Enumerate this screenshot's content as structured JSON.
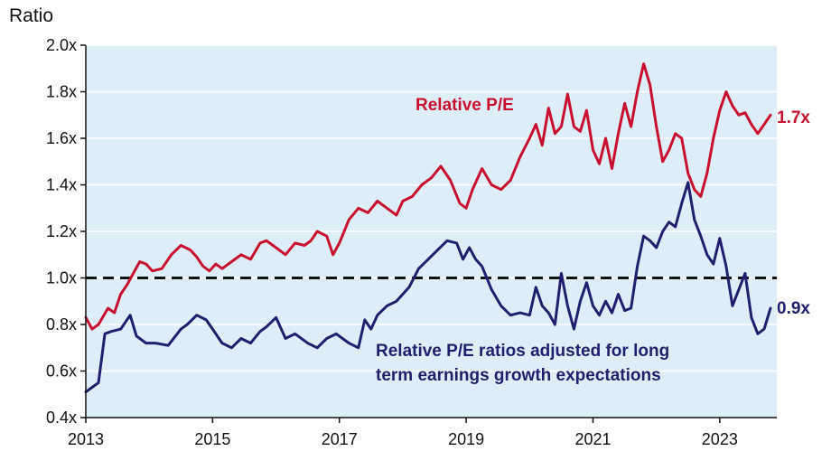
{
  "chart_data": {
    "type": "line",
    "ylabel": "Ratio",
    "xlim": [
      2013,
      2023.9
    ],
    "ylim": [
      0.4,
      2.0
    ],
    "yticks": [
      {
        "value": 2.0,
        "label": "2.0x"
      },
      {
        "value": 1.8,
        "label": "1.8x"
      },
      {
        "value": 1.6,
        "label": "1.6x"
      },
      {
        "value": 1.4,
        "label": "1.4x"
      },
      {
        "value": 1.2,
        "label": "1.2x"
      },
      {
        "value": 1.0,
        "label": "1.0x"
      },
      {
        "value": 0.8,
        "label": "0.8x"
      },
      {
        "value": 0.6,
        "label": "0.6x"
      },
      {
        "value": 0.4,
        "label": "0.4x"
      }
    ],
    "xticks": [
      {
        "value": 2013,
        "label": "2013"
      },
      {
        "value": 2015,
        "label": "2015"
      },
      {
        "value": 2017,
        "label": "2017"
      },
      {
        "value": 2019,
        "label": "2019"
      },
      {
        "value": 2021,
        "label": "2021"
      },
      {
        "value": 2023,
        "label": "2023"
      }
    ],
    "reference_line": {
      "value": 1.0,
      "style": "dashed"
    },
    "series": [
      {
        "name": "Relative P/E",
        "color": "#c8102e",
        "end_label": "1.7x",
        "x": [
          2013.0,
          2013.1,
          2013.2,
          2013.35,
          2013.45,
          2013.55,
          2013.65,
          2013.75,
          2013.85,
          2013.95,
          2014.05,
          2014.2,
          2014.35,
          2014.5,
          2014.65,
          2014.75,
          2014.85,
          2014.95,
          2015.05,
          2015.15,
          2015.3,
          2015.45,
          2015.6,
          2015.75,
          2015.85,
          2016.0,
          2016.15,
          2016.3,
          2016.45,
          2016.55,
          2016.65,
          2016.8,
          2016.9,
          2017.0,
          2017.15,
          2017.3,
          2017.45,
          2017.6,
          2017.75,
          2017.9,
          2018.0,
          2018.15,
          2018.3,
          2018.45,
          2018.6,
          2018.75,
          2018.9,
          2019.0,
          2019.1,
          2019.25,
          2019.4,
          2019.55,
          2019.7,
          2019.85,
          2020.0,
          2020.1,
          2020.2,
          2020.3,
          2020.4,
          2020.5,
          2020.6,
          2020.7,
          2020.8,
          2020.9,
          2021.0,
          2021.1,
          2021.2,
          2021.3,
          2021.4,
          2021.5,
          2021.6,
          2021.7,
          2021.8,
          2021.9,
          2022.0,
          2022.1,
          2022.2,
          2022.3,
          2022.4,
          2022.5,
          2022.6,
          2022.7,
          2022.8,
          2022.9,
          2023.0,
          2023.1,
          2023.2,
          2023.3,
          2023.4,
          2023.5,
          2023.6,
          2023.7,
          2023.8
        ],
        "values": [
          0.83,
          0.78,
          0.8,
          0.87,
          0.85,
          0.93,
          0.97,
          1.02,
          1.07,
          1.06,
          1.03,
          1.04,
          1.1,
          1.14,
          1.12,
          1.09,
          1.05,
          1.03,
          1.06,
          1.04,
          1.07,
          1.1,
          1.08,
          1.15,
          1.16,
          1.13,
          1.1,
          1.15,
          1.14,
          1.16,
          1.2,
          1.18,
          1.1,
          1.15,
          1.25,
          1.3,
          1.28,
          1.33,
          1.3,
          1.27,
          1.33,
          1.35,
          1.4,
          1.43,
          1.48,
          1.42,
          1.32,
          1.3,
          1.38,
          1.47,
          1.4,
          1.38,
          1.42,
          1.52,
          1.6,
          1.66,
          1.57,
          1.73,
          1.62,
          1.65,
          1.79,
          1.65,
          1.63,
          1.72,
          1.55,
          1.49,
          1.6,
          1.47,
          1.62,
          1.75,
          1.65,
          1.8,
          1.92,
          1.83,
          1.65,
          1.5,
          1.55,
          1.62,
          1.6,
          1.45,
          1.38,
          1.35,
          1.45,
          1.6,
          1.72,
          1.8,
          1.74,
          1.7,
          1.71,
          1.66,
          1.62,
          1.66,
          1.7
        ]
      },
      {
        "name": "Relative P/E ratios adjusted for long term earnings growth expectations",
        "color": "#1f1f6e",
        "end_label": "0.9x",
        "x": [
          2013.0,
          2013.1,
          2013.2,
          2013.3,
          2013.4,
          2013.55,
          2013.7,
          2013.8,
          2013.95,
          2014.1,
          2014.3,
          2014.5,
          2014.6,
          2014.75,
          2014.9,
          2015.0,
          2015.15,
          2015.3,
          2015.45,
          2015.6,
          2015.75,
          2015.85,
          2016.0,
          2016.15,
          2016.3,
          2016.5,
          2016.65,
          2016.8,
          2016.95,
          2017.0,
          2017.15,
          2017.3,
          2017.4,
          2017.5,
          2017.6,
          2017.75,
          2017.9,
          2018.1,
          2018.25,
          2018.4,
          2018.55,
          2018.7,
          2018.85,
          2018.95,
          2019.05,
          2019.15,
          2019.25,
          2019.4,
          2019.55,
          2019.7,
          2019.85,
          2020.0,
          2020.1,
          2020.2,
          2020.3,
          2020.4,
          2020.5,
          2020.6,
          2020.7,
          2020.8,
          2020.9,
          2021.0,
          2021.1,
          2021.2,
          2021.3,
          2021.4,
          2021.5,
          2021.6,
          2021.7,
          2021.8,
          2021.9,
          2022.0,
          2022.1,
          2022.2,
          2022.3,
          2022.4,
          2022.5,
          2022.6,
          2022.7,
          2022.8,
          2022.9,
          2023.0,
          2023.1,
          2023.2,
          2023.3,
          2023.4,
          2023.5,
          2023.6,
          2023.7,
          2023.8
        ],
        "values": [
          0.51,
          0.53,
          0.55,
          0.76,
          0.77,
          0.78,
          0.84,
          0.75,
          0.72,
          0.72,
          0.71,
          0.78,
          0.8,
          0.84,
          0.82,
          0.78,
          0.72,
          0.7,
          0.74,
          0.72,
          0.77,
          0.79,
          0.83,
          0.74,
          0.76,
          0.72,
          0.7,
          0.74,
          0.76,
          0.75,
          0.72,
          0.7,
          0.82,
          0.78,
          0.84,
          0.88,
          0.9,
          0.96,
          1.04,
          1.08,
          1.12,
          1.16,
          1.15,
          1.08,
          1.13,
          1.08,
          1.05,
          0.95,
          0.88,
          0.84,
          0.85,
          0.84,
          0.96,
          0.88,
          0.85,
          0.8,
          1.02,
          0.88,
          0.78,
          0.9,
          0.98,
          0.88,
          0.84,
          0.9,
          0.85,
          0.93,
          0.86,
          0.87,
          1.05,
          1.18,
          1.16,
          1.13,
          1.2,
          1.24,
          1.22,
          1.32,
          1.41,
          1.25,
          1.18,
          1.1,
          1.06,
          1.17,
          1.05,
          0.88,
          0.95,
          1.02,
          0.83,
          0.76,
          0.78,
          0.87
        ]
      }
    ]
  }
}
